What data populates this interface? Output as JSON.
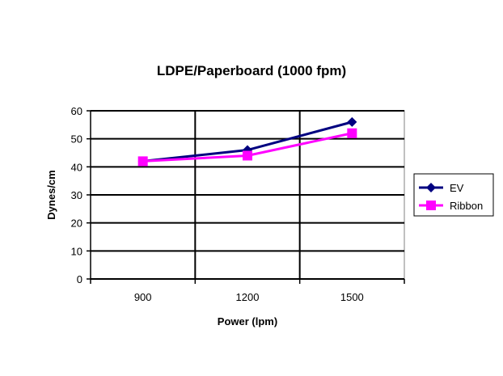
{
  "chart_data": {
    "type": "line",
    "title": "LDPE/Paperboard (1000 fpm)",
    "xlabel": "Power (lpm)",
    "ylabel": "Dynes/cm",
    "categories": [
      "900",
      "1200",
      "1500"
    ],
    "ylim": [
      0,
      60
    ],
    "yticks": [
      0,
      10,
      20,
      30,
      40,
      50,
      60
    ],
    "grid": true,
    "legend_position": "right",
    "series": [
      {
        "name": "EV",
        "values": [
          42,
          46,
          56
        ],
        "color": "#000080",
        "marker": "diamond"
      },
      {
        "name": "Ribbon",
        "values": [
          42,
          44,
          52
        ],
        "color": "#FF00FF",
        "marker": "square"
      }
    ]
  }
}
